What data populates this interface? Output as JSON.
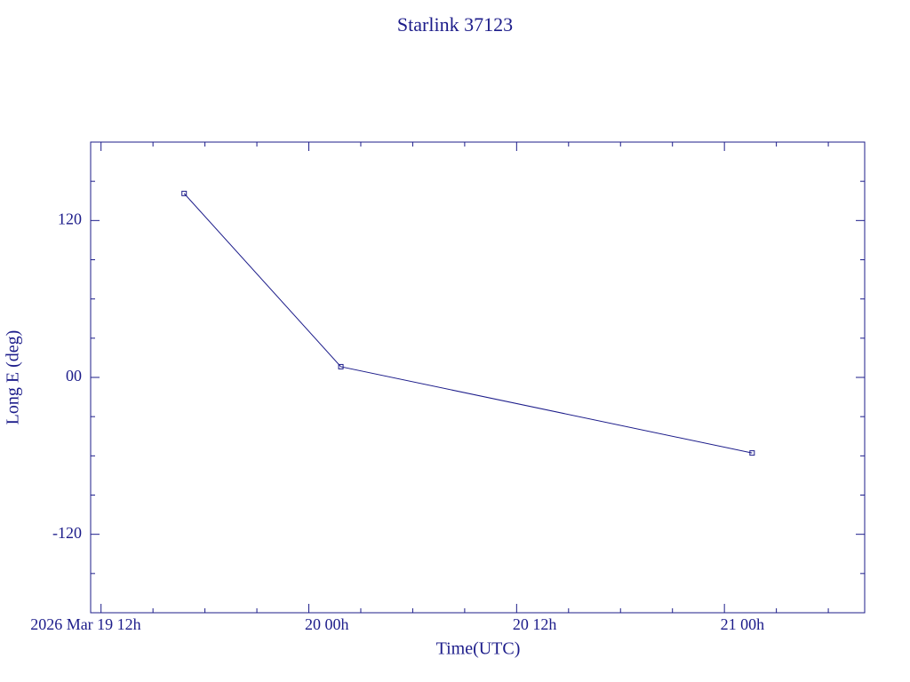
{
  "chart_data": {
    "type": "line",
    "title": "Starlink 37123",
    "xlabel": "Time(UTC)",
    "ylabel": "Long E (deg)",
    "x": [
      16.8,
      25.85,
      49.6
    ],
    "series": [
      {
        "color": "#1c1c8a",
        "values": [
          140.7,
          8.2,
          -57.8
        ]
      }
    ],
    "xlim": [
      11.4,
      56.1
    ],
    "xticks": [
      {
        "value": 12,
        "label": "2026 Mar 19  12h"
      },
      {
        "value": 24,
        "label": "20  00h"
      },
      {
        "value": 36,
        "label": "20  12h"
      },
      {
        "value": 48,
        "label": "21  00h"
      }
    ],
    "xminorticks": [
      15,
      18,
      21,
      27,
      30,
      33,
      39,
      42,
      45,
      51,
      54
    ],
    "ylim": [
      -180,
      180
    ],
    "yticks": [
      -120,
      {
        "value": 0,
        "label": "00"
      },
      120
    ],
    "yminorticks": [
      -150,
      -90,
      -60,
      -30,
      30,
      60,
      90,
      150
    ]
  }
}
